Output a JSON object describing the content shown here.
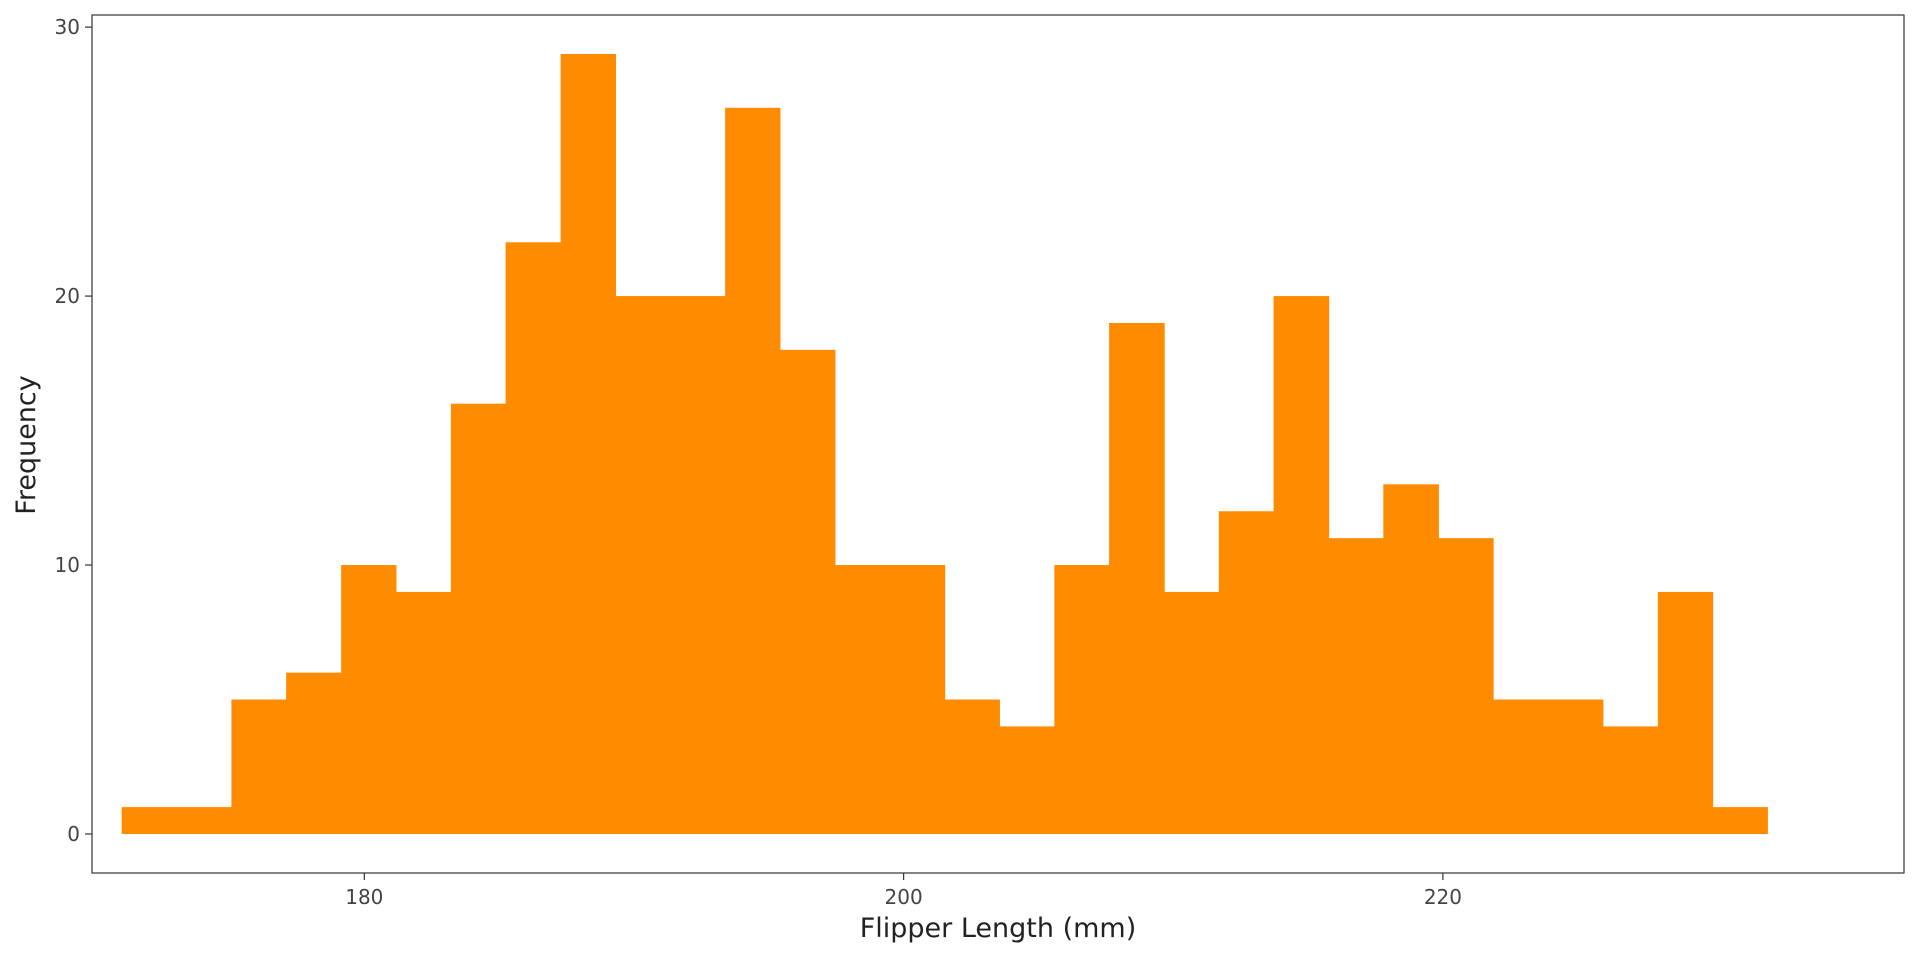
{
  "chart_data": {
    "type": "bar",
    "xlabel": "Flipper Length (mm)",
    "ylabel": "Frequency",
    "bin_width": 2.0345,
    "bins": [
      {
        "x0": 171.0,
        "x1": 173.03,
        "count": 1
      },
      {
        "x0": 173.03,
        "x1": 175.07,
        "count": 1
      },
      {
        "x0": 175.07,
        "x1": 177.1,
        "count": 5
      },
      {
        "x0": 177.1,
        "x1": 179.14,
        "count": 6
      },
      {
        "x0": 179.14,
        "x1": 181.17,
        "count": 10
      },
      {
        "x0": 181.17,
        "x1": 183.21,
        "count": 9
      },
      {
        "x0": 183.21,
        "x1": 185.24,
        "count": 16
      },
      {
        "x0": 185.24,
        "x1": 187.28,
        "count": 22
      },
      {
        "x0": 187.28,
        "x1": 189.31,
        "count": 29
      },
      {
        "x0": 189.31,
        "x1": 191.34,
        "count": 20
      },
      {
        "x0": 191.34,
        "x1": 193.38,
        "count": 20
      },
      {
        "x0": 193.38,
        "x1": 195.41,
        "count": 27
      },
      {
        "x0": 195.41,
        "x1": 197.45,
        "count": 18
      },
      {
        "x0": 197.45,
        "x1": 199.48,
        "count": 10
      },
      {
        "x0": 199.48,
        "x1": 201.52,
        "count": 10
      },
      {
        "x0": 201.52,
        "x1": 203.55,
        "count": 5
      },
      {
        "x0": 203.55,
        "x1": 205.59,
        "count": 4
      },
      {
        "x0": 205.59,
        "x1": 207.62,
        "count": 10
      },
      {
        "x0": 207.62,
        "x1": 209.66,
        "count": 19
      },
      {
        "x0": 209.66,
        "x1": 211.69,
        "count": 9
      },
      {
        "x0": 211.69,
        "x1": 213.72,
        "count": 12
      },
      {
        "x0": 213.72,
        "x1": 215.76,
        "count": 20
      },
      {
        "x0": 215.76,
        "x1": 217.79,
        "count": 11
      },
      {
        "x0": 217.79,
        "x1": 219.83,
        "count": 13
      },
      {
        "x0": 219.83,
        "x1": 221.86,
        "count": 11
      },
      {
        "x0": 221.86,
        "x1": 223.9,
        "count": 5
      },
      {
        "x0": 223.9,
        "x1": 225.93,
        "count": 5
      },
      {
        "x0": 225.93,
        "x1": 227.97,
        "count": 4
      },
      {
        "x0": 227.97,
        "x1": 230.0,
        "count": 9
      },
      {
        "x0": 230.0,
        "x1": 232.03,
        "count": 1
      }
    ],
    "xlim": [
      169.9,
      237.1
    ],
    "ylim": [
      -1.45,
      30.45
    ],
    "xticks": [
      180,
      200,
      220
    ],
    "yticks": [
      0,
      10,
      20,
      30
    ],
    "bar_color": "#FF8C00",
    "grid": false,
    "legend": "none"
  }
}
